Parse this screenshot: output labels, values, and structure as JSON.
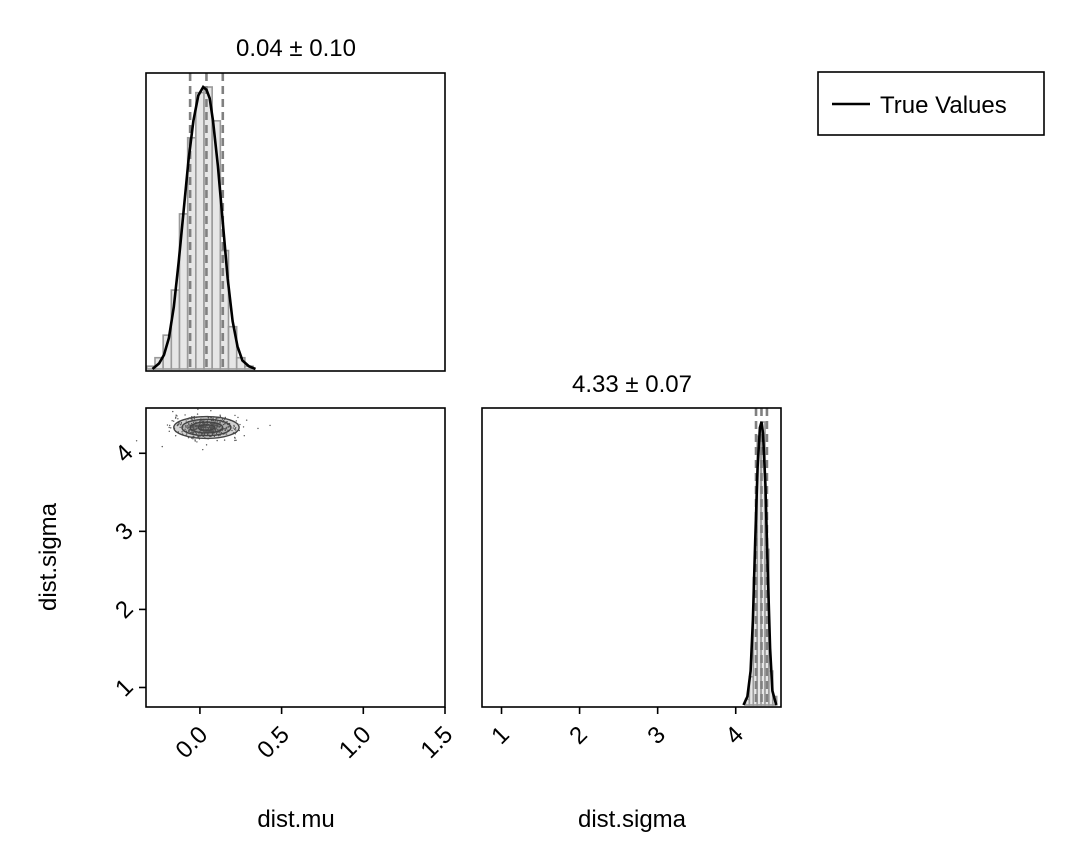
{
  "legend": {
    "label": "True Values",
    "color": "#000000"
  },
  "chart_data": [
    {
      "type": "histogram",
      "title": "0.04 ± 0.10",
      "variable": "dist.mu",
      "xlim": [
        -0.33,
        1.5
      ],
      "bin_width": 0.05,
      "bins_start": -0.325,
      "counts": [
        0.01,
        0.04,
        0.12,
        0.28,
        0.55,
        0.82,
        0.98,
        1.0,
        0.88,
        0.42,
        0.15,
        0.04,
        0.01
      ],
      "kde_x": [
        -0.29,
        -0.25,
        -0.22,
        -0.19,
        -0.16,
        -0.13,
        -0.1,
        -0.07,
        -0.04,
        -0.01,
        0.02,
        0.04,
        0.06,
        0.08,
        0.11,
        0.14,
        0.17,
        0.2,
        0.23,
        0.26,
        0.3,
        0.34
      ],
      "kde_y": [
        0.0,
        0.02,
        0.05,
        0.11,
        0.22,
        0.38,
        0.56,
        0.74,
        0.88,
        0.97,
        1.0,
        0.99,
        0.96,
        0.88,
        0.72,
        0.52,
        0.32,
        0.17,
        0.08,
        0.03,
        0.01,
        0.0
      ],
      "quantile_lines": [
        -0.06,
        0.04,
        0.14
      ],
      "color": "#808080"
    },
    {
      "type": "scatter",
      "xlabel": "dist.mu",
      "ylabel": "dist.sigma",
      "xlim": [
        -0.33,
        1.5
      ],
      "ylim": [
        0.75,
        4.58
      ],
      "xticks": [
        "0.0",
        "0.5",
        "1.0",
        "1.5"
      ],
      "xtick_values": [
        0.0,
        0.5,
        1.0,
        1.5
      ],
      "yticks": [
        "1",
        "2",
        "3",
        "4"
      ],
      "ytick_values": [
        1,
        2,
        3,
        4
      ],
      "center": {
        "x": 0.04,
        "y": 4.33
      },
      "spread": {
        "x": 0.1,
        "y": 0.07
      },
      "color": "#555555"
    },
    {
      "type": "histogram",
      "title": "4.33 ± 0.07",
      "variable": "dist.sigma",
      "xlabel": "dist.sigma",
      "xlim": [
        0.75,
        4.58
      ],
      "xticks": [
        "1",
        "2",
        "3",
        "4"
      ],
      "xtick_values": [
        1,
        2,
        3,
        4
      ],
      "bin_width": 0.05,
      "bins_start": 4.125,
      "counts": [
        0.02,
        0.1,
        0.45,
        0.95,
        1.0,
        0.55,
        0.12,
        0.03
      ],
      "kde_x": [
        4.1,
        4.15,
        4.19,
        4.22,
        4.25,
        4.28,
        4.31,
        4.33,
        4.35,
        4.38,
        4.41,
        4.44,
        4.47,
        4.52
      ],
      "kde_y": [
        0.0,
        0.03,
        0.12,
        0.3,
        0.58,
        0.84,
        0.98,
        1.0,
        0.96,
        0.78,
        0.48,
        0.2,
        0.05,
        0.0
      ],
      "quantile_lines": [
        4.26,
        4.33,
        4.4
      ],
      "color": "#808080"
    }
  ]
}
